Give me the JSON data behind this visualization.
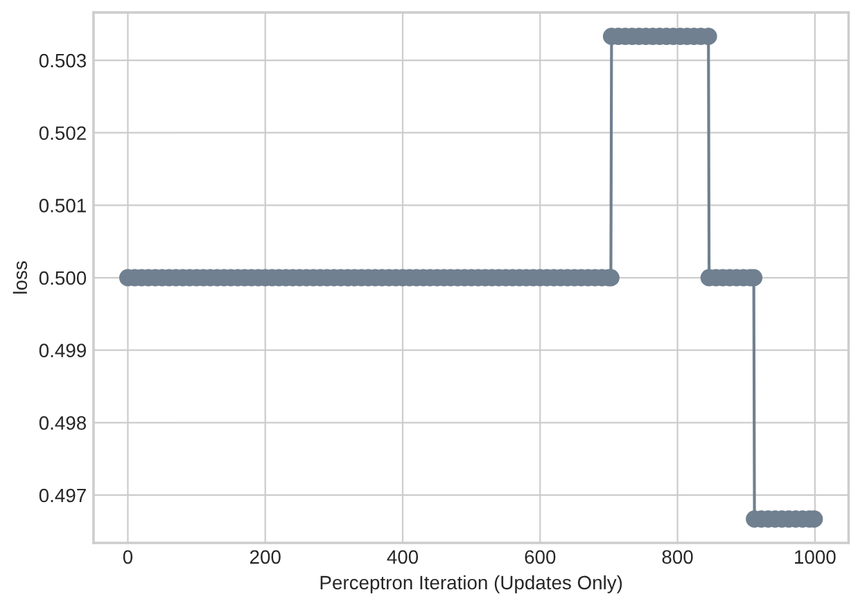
{
  "chart_data": {
    "type": "line",
    "xlabel": "Perceptron Iteration (Updates Only)",
    "ylabel": "loss",
    "series": [
      {
        "color": "#708090",
        "x": [
          0,
          10,
          20,
          30,
          40,
          50,
          60,
          70,
          80,
          90,
          100,
          110,
          120,
          130,
          140,
          150,
          160,
          170,
          180,
          190,
          200,
          210,
          220,
          230,
          240,
          250,
          260,
          270,
          280,
          290,
          300,
          310,
          320,
          330,
          340,
          350,
          360,
          370,
          380,
          390,
          400,
          410,
          420,
          430,
          440,
          450,
          460,
          470,
          480,
          490,
          500,
          510,
          520,
          530,
          540,
          550,
          560,
          570,
          580,
          590,
          600,
          610,
          620,
          630,
          640,
          650,
          660,
          670,
          680,
          690,
          700,
          703,
          704,
          714,
          724,
          734,
          744,
          754,
          764,
          774,
          784,
          794,
          804,
          814,
          824,
          834,
          845,
          846,
          856,
          866,
          876,
          886,
          896,
          906,
          911,
          912,
          922,
          932,
          942,
          952,
          962,
          972,
          982,
          992,
          999
        ],
        "values": [
          0.5,
          0.5,
          0.5,
          0.5,
          0.5,
          0.5,
          0.5,
          0.5,
          0.5,
          0.5,
          0.5,
          0.5,
          0.5,
          0.5,
          0.5,
          0.5,
          0.5,
          0.5,
          0.5,
          0.5,
          0.5,
          0.5,
          0.5,
          0.5,
          0.5,
          0.5,
          0.5,
          0.5,
          0.5,
          0.5,
          0.5,
          0.5,
          0.5,
          0.5,
          0.5,
          0.5,
          0.5,
          0.5,
          0.5,
          0.5,
          0.5,
          0.5,
          0.5,
          0.5,
          0.5,
          0.5,
          0.5,
          0.5,
          0.5,
          0.5,
          0.5,
          0.5,
          0.5,
          0.5,
          0.5,
          0.5,
          0.5,
          0.5,
          0.5,
          0.5,
          0.5,
          0.5,
          0.5,
          0.5,
          0.5,
          0.5,
          0.5,
          0.5,
          0.5,
          0.5,
          0.5,
          0.5,
          0.50333,
          0.50333,
          0.50333,
          0.50333,
          0.50333,
          0.50333,
          0.50333,
          0.50333,
          0.50333,
          0.50333,
          0.50333,
          0.50333,
          0.50333,
          0.50333,
          0.50333,
          0.5,
          0.5,
          0.5,
          0.5,
          0.5,
          0.5,
          0.5,
          0.5,
          0.49667,
          0.49667,
          0.49667,
          0.49667,
          0.49667,
          0.49667,
          0.49667,
          0.49667,
          0.49667,
          0.49667
        ]
      }
    ],
    "xlim": [
      -49.95,
      1048.95
    ],
    "xticks": [
      0,
      200,
      400,
      600,
      800,
      1000
    ],
    "ylim": [
      0.49634,
      0.50366
    ],
    "yticks": [
      0.497,
      0.498,
      0.499,
      {
        "value": 0.5,
        "label": "0.500"
      },
      0.501,
      0.502,
      0.503
    ],
    "grid": true,
    "marker": "circle",
    "line_style": "solid"
  }
}
